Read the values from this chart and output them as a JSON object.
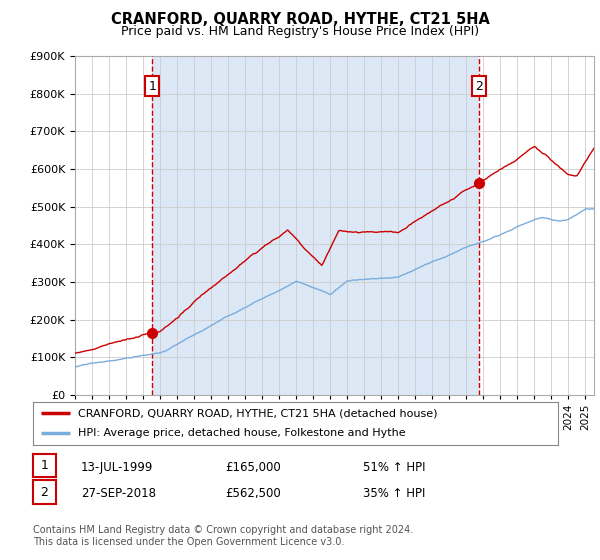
{
  "title": "CRANFORD, QUARRY ROAD, HYTHE, CT21 5HA",
  "subtitle": "Price paid vs. HM Land Registry's House Price Index (HPI)",
  "ylim": [
    0,
    900000
  ],
  "xlim_start": 1995.0,
  "xlim_end": 2025.5,
  "red_color": "#cc0000",
  "blue_color": "#7aacdc",
  "shade_color": "#dce8f5",
  "dashed_color": "#cc0000",
  "legend_red_label": "CRANFORD, QUARRY ROAD, HYTHE, CT21 5HA (detached house)",
  "legend_blue_label": "HPI: Average price, detached house, Folkestone and Hythe",
  "transaction1_date": "13-JUL-1999",
  "transaction1_price": "£165,000",
  "transaction1_hpi": "51% ↑ HPI",
  "transaction1_year": 1999.54,
  "transaction1_value": 165000,
  "transaction2_date": "27-SEP-2018",
  "transaction2_price": "£562,500",
  "transaction2_hpi": "35% ↑ HPI",
  "transaction2_year": 2018.73,
  "transaction2_value": 562500,
  "footer": "Contains HM Land Registry data © Crown copyright and database right 2024.\nThis data is licensed under the Open Government Licence v3.0.",
  "background_color": "#ffffff",
  "plot_bg_color": "#ffffff",
  "grid_color": "#cccccc"
}
